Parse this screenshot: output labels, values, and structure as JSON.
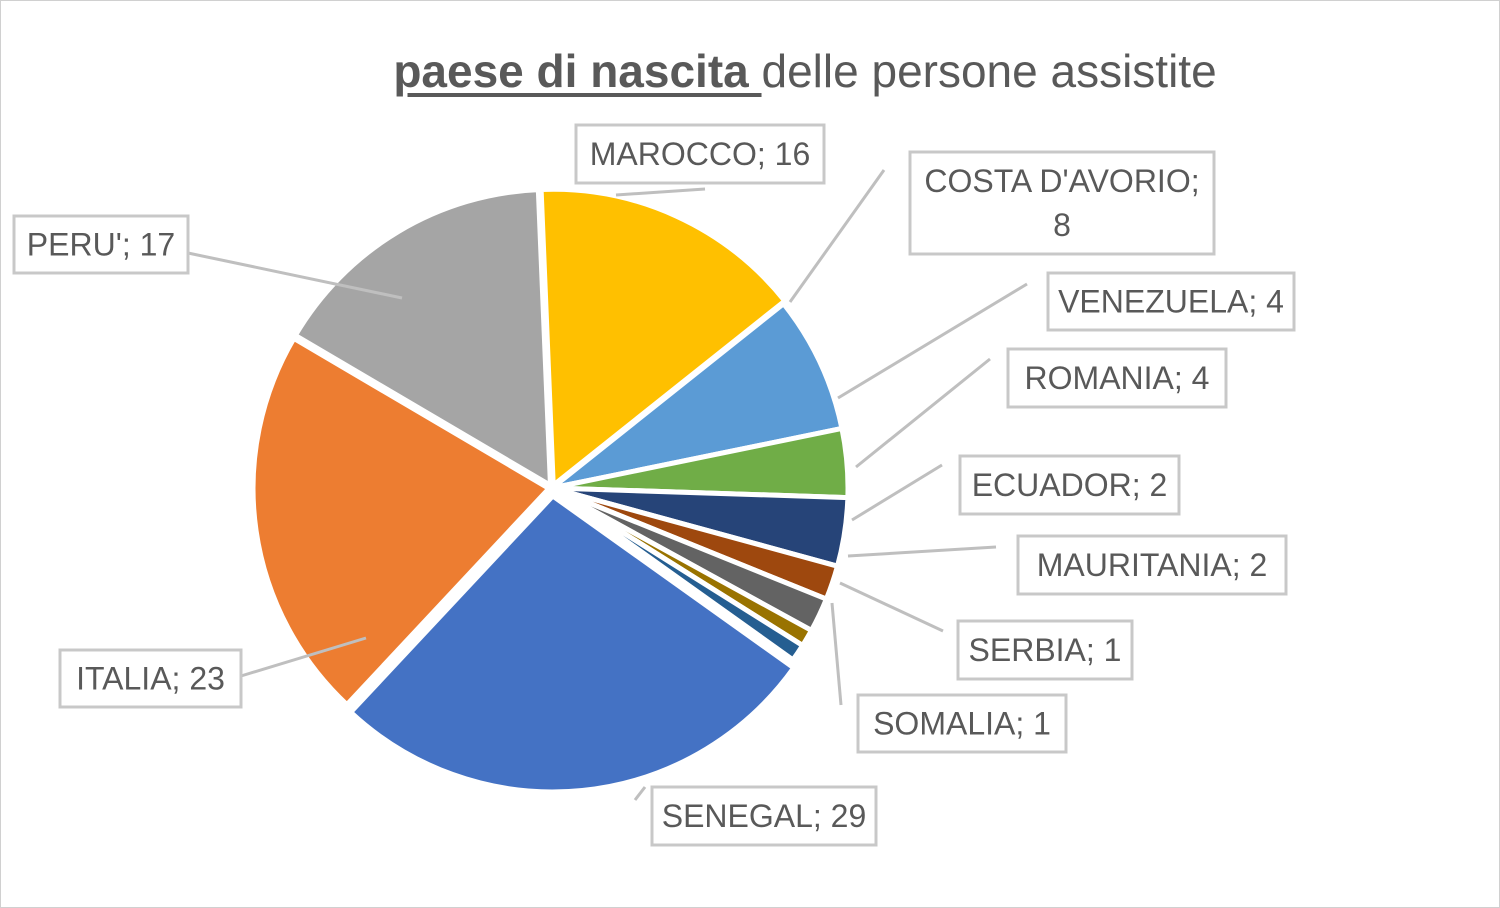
{
  "chart_data": {
    "type": "pie",
    "title_bold": "paese di nascita ",
    "title_rest": "delle persone assistite",
    "series": [
      {
        "name": "SENEGAL",
        "value": 29,
        "label": "SENEGAL; 29",
        "color": "#4472C4"
      },
      {
        "name": "ITALIA",
        "value": 23,
        "label": "ITALIA; 23",
        "color": "#ED7D31"
      },
      {
        "name": "PERU'",
        "value": 17,
        "label": "PERU'; 17",
        "color": "#A5A5A5"
      },
      {
        "name": "MAROCCO",
        "value": 16,
        "label": "MAROCCO; 16",
        "color": "#FFC000"
      },
      {
        "name": "COSTA D'AVORIO",
        "value": 8,
        "label": [
          "COSTA D'AVORIO;",
          "8"
        ],
        "color": "#5B9BD5"
      },
      {
        "name": "VENEZUELA",
        "value": 4,
        "label": "VENEZUELA; 4",
        "color": "#70AD47"
      },
      {
        "name": "ROMANIA",
        "value": 4,
        "label": "ROMANIA; 4",
        "color": "#264478"
      },
      {
        "name": "ECUADOR",
        "value": 2,
        "label": "ECUADOR; 2",
        "color": "#9E480E"
      },
      {
        "name": "MAURITANIA",
        "value": 2,
        "label": "MAURITANIA; 2",
        "color": "#636363"
      },
      {
        "name": "SERBIA",
        "value": 1,
        "label": "SERBIA; 1",
        "color": "#997300"
      },
      {
        "name": "SOMALIA",
        "value": 1,
        "label": "SOMALIA; 1",
        "color": "#255E91"
      }
    ],
    "legend": "none"
  }
}
